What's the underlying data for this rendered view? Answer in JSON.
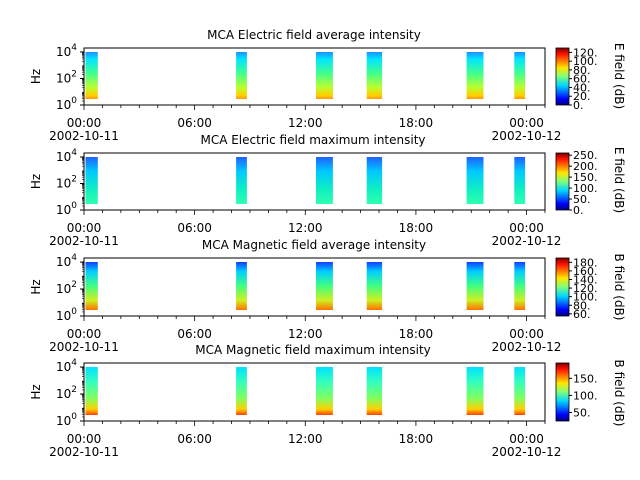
{
  "chart_data": [
    {
      "type": "heatmap",
      "title": "MCA  Electric field average intensity",
      "ylabel": "Hz",
      "yscale": "log",
      "ytick_labels": [
        {
          "base": "10",
          "exp": "0"
        },
        {
          "base": "10",
          "exp": "2"
        },
        {
          "base": "10",
          "exp": "4"
        }
      ],
      "xlim": [
        "2002-10-11 00:00",
        "2002-10-12 01:00"
      ],
      "xtick_labels": [
        "00:00",
        "06:00",
        "12:00",
        "18:00",
        "00:00"
      ],
      "xdate_labels": [
        "2002-10-11",
        "2002-10-12"
      ],
      "colorbar_label": "E field (dB)",
      "colorbar_ticks": [
        "120.",
        "100.",
        "80.",
        "60.",
        "40.",
        "20.",
        "0."
      ],
      "colorbar_range": [
        0,
        130
      ],
      "data_intervals": [
        [
          "00:05",
          "00:45"
        ],
        [
          "08:15",
          "08:50"
        ],
        [
          "12:35",
          "13:30"
        ],
        [
          "15:20",
          "16:10"
        ],
        [
          "20:45",
          "21:40"
        ],
        [
          "23:20",
          "23:55"
        ]
      ]
    },
    {
      "type": "heatmap",
      "title": "MCA  Electric field maximum intensity",
      "ylabel": "Hz",
      "yscale": "log",
      "ytick_labels": [
        {
          "base": "10",
          "exp": "0"
        },
        {
          "base": "10",
          "exp": "2"
        },
        {
          "base": "10",
          "exp": "4"
        }
      ],
      "xlim": [
        "2002-10-11 00:00",
        "2002-10-12 01:00"
      ],
      "xtick_labels": [
        "00:00",
        "06:00",
        "12:00",
        "18:00",
        "00:00"
      ],
      "xdate_labels": [
        "2002-10-11",
        "2002-10-12"
      ],
      "colorbar_label": "E field (dB)",
      "colorbar_ticks": [
        "250.",
        "200.",
        "150.",
        "100.",
        "50.",
        "0."
      ],
      "colorbar_range": [
        0,
        260
      ],
      "data_intervals": [
        [
          "00:05",
          "00:45"
        ],
        [
          "08:15",
          "08:50"
        ],
        [
          "12:35",
          "13:30"
        ],
        [
          "15:20",
          "16:10"
        ],
        [
          "20:45",
          "21:40"
        ],
        [
          "23:20",
          "23:55"
        ]
      ]
    },
    {
      "type": "heatmap",
      "title": "MCA  Magnetic field average intensity",
      "ylabel": "Hz",
      "yscale": "log",
      "ytick_labels": [
        {
          "base": "10",
          "exp": "0"
        },
        {
          "base": "10",
          "exp": "2"
        },
        {
          "base": "10",
          "exp": "4"
        }
      ],
      "xlim": [
        "2002-10-11 00:00",
        "2002-10-12 01:00"
      ],
      "xtick_labels": [
        "00:00",
        "06:00",
        "12:00",
        "18:00",
        "00:00"
      ],
      "xdate_labels": [
        "2002-10-11",
        "2002-10-12"
      ],
      "colorbar_label": "B field (dB)",
      "colorbar_ticks": [
        "180.",
        "160.",
        "140.",
        "120.",
        "100.",
        "80.",
        "60."
      ],
      "colorbar_range": [
        55,
        190
      ],
      "data_intervals": [
        [
          "00:05",
          "00:45"
        ],
        [
          "08:15",
          "08:50"
        ],
        [
          "12:35",
          "13:30"
        ],
        [
          "15:20",
          "16:10"
        ],
        [
          "20:45",
          "21:40"
        ],
        [
          "23:20",
          "23:55"
        ]
      ]
    },
    {
      "type": "heatmap",
      "title": "MCA  Magnetic field maximum intensity",
      "ylabel": "Hz",
      "yscale": "log",
      "ytick_labels": [
        {
          "base": "10",
          "exp": "0"
        },
        {
          "base": "10",
          "exp": "2"
        },
        {
          "base": "10",
          "exp": "4"
        }
      ],
      "xlim": [
        "2002-10-11 00:00",
        "2002-10-12 01:00"
      ],
      "xtick_labels": [
        "00:00",
        "06:00",
        "12:00",
        "18:00",
        "00:00"
      ],
      "xdate_labels": [
        "2002-10-11",
        "2002-10-12"
      ],
      "colorbar_label": "B field (dB)",
      "colorbar_ticks": [
        "150.",
        "100.",
        "50."
      ],
      "colorbar_range": [
        25,
        195
      ],
      "data_intervals": [
        [
          "00:05",
          "00:45"
        ],
        [
          "08:15",
          "08:50"
        ],
        [
          "12:35",
          "13:30"
        ],
        [
          "15:20",
          "16:10"
        ],
        [
          "20:45",
          "21:40"
        ],
        [
          "23:20",
          "23:55"
        ]
      ]
    }
  ]
}
